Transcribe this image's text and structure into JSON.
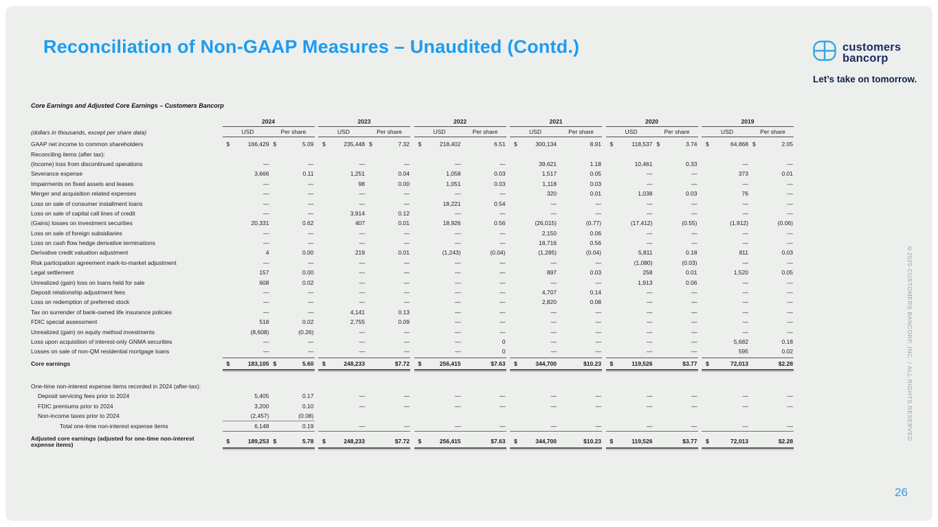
{
  "slide": {
    "title": "Reconciliation of Non-GAAP Measures – Unaudited (Contd.)",
    "page_number": "26",
    "copyright_vertical": "©2025 CUSTOMERS BANCORP, INC. / ALL RIGHTS RESERVED",
    "accent_blue": "#1c9cf2",
    "navy": "#1b2b63",
    "logo_icon_blue": "#2fa9e3",
    "background": "#edefed"
  },
  "logo": {
    "line1": "customers",
    "line2": "bancorp",
    "tagline": "Let’s take on tomorrow."
  },
  "table": {
    "heading": "Core Earnings and Adjusted Core Earnings – Customers Bancorp",
    "units_note": "(dollars in thousands, except per share data)",
    "years": [
      "2024",
      "2023",
      "2022",
      "2021",
      "2020",
      "2019"
    ],
    "subheaders": [
      "USD",
      "Per share"
    ],
    "rows": [
      {
        "label": "GAAP net income to common shareholders",
        "type": "data first-data",
        "cells": [
          "$|166,429",
          "$|5.09",
          "$|235,448",
          "$|7.32",
          "$|218,402",
          "6.51",
          "$|300,134",
          "8.91",
          "$|118,537",
          "$|3.74",
          "$|64,868",
          "$|2.05"
        ]
      },
      {
        "label": "Reconciling items (after tax):",
        "type": "label-only",
        "cells": [
          "",
          "",
          "",
          "",
          "",
          "",
          "",
          "",
          "",
          "",
          "",
          ""
        ]
      },
      {
        "label": "(Income) loss from discontinued operations",
        "type": "data",
        "cells": [
          "—",
          "—",
          "—",
          "—",
          "—",
          "—",
          "39,621",
          "1.18",
          "10,461",
          "0.33",
          "—",
          "—"
        ]
      },
      {
        "label": "Severance expense",
        "type": "data",
        "cells": [
          "3,666",
          "0.11",
          "1,251",
          "0.04",
          "1,058",
          "0.03",
          "1,517",
          "0.05",
          "—",
          "—",
          "373",
          "0.01"
        ]
      },
      {
        "label": "Impairments on fixed assets and leases",
        "type": "data",
        "cells": [
          "—",
          "—",
          "98",
          "0.00",
          "1,051",
          "0.03",
          "1,118",
          "0.03",
          "—",
          "—",
          "—",
          "—"
        ]
      },
      {
        "label": "Merger and acquisition related expenses",
        "type": "data",
        "cells": [
          "—",
          "—",
          "—",
          "—",
          "—",
          "—",
          "320",
          "0.01",
          "1,038",
          "0.03",
          "76",
          "—"
        ]
      },
      {
        "label": "Loss on sale of consumer installment loans",
        "type": "data",
        "cells": [
          "—",
          "—",
          "—",
          "—",
          "18,221",
          "0.54",
          "—",
          "—",
          "—",
          "—",
          "—",
          "—"
        ]
      },
      {
        "label": "Loss on sale of capital call lines of credit",
        "type": "data",
        "cells": [
          "—",
          "—",
          "3,914",
          "0.12",
          "—",
          "—",
          "—",
          "—",
          "—",
          "—",
          "—",
          "—"
        ]
      },
      {
        "label": "(Gains) losses on investment securities",
        "type": "data",
        "cells": [
          "20,331",
          "0.62",
          "407",
          "0.01",
          "18,926",
          "0.56",
          "(26,015)",
          "(0.77)",
          "(17,412)",
          "(0.55)",
          "(1,912)",
          "(0.06)"
        ]
      },
      {
        "label": "Loss on sale of foreign subsidiaries",
        "type": "data",
        "cells": [
          "—",
          "—",
          "—",
          "—",
          "—",
          "—",
          "2,150",
          "0.06",
          "—",
          "—",
          "—",
          "—"
        ]
      },
      {
        "label": "Loss on cash flow hedge derivative terminations",
        "type": "data",
        "cells": [
          "—",
          "—",
          "—",
          "—",
          "—",
          "—",
          "18,716",
          "0.56",
          "—",
          "—",
          "—",
          "—"
        ]
      },
      {
        "label": "Derivative credit valuation adjustment",
        "type": "data",
        "cells": [
          "4",
          "0.00",
          "219",
          "0.01",
          "(1,243)",
          "(0.04)",
          "(1,285)",
          "(0.04)",
          "5,811",
          "0.18",
          "811",
          "0.03"
        ]
      },
      {
        "label": "Risk participation agreement mark-to-market adjustment",
        "type": "data",
        "cells": [
          "—",
          "—",
          "—",
          "—",
          "—",
          "—",
          "—",
          "—",
          "(1,080)",
          "(0.03)",
          "—",
          "—"
        ]
      },
      {
        "label": "Legal settlement",
        "type": "data",
        "cells": [
          "157",
          "0.00",
          "—",
          "—",
          "—",
          "—",
          "897",
          "0.03",
          "258",
          "0.01",
          "1,520",
          "0.05"
        ]
      },
      {
        "label": "Unrealized (gain) loss on loans held for sale",
        "type": "data",
        "cells": [
          "608",
          "0.02",
          "—",
          "—",
          "—",
          "—",
          "—",
          "—",
          "1,913",
          "0.06",
          "—",
          "—"
        ]
      },
      {
        "label": "Deposit relationship adjustment fees",
        "type": "data",
        "cells": [
          "—",
          "—",
          "—",
          "—",
          "—",
          "—",
          "4,707",
          "0.14",
          "—",
          "—",
          "—",
          "—"
        ]
      },
      {
        "label": "Loss on redemption of preferred stock",
        "type": "data",
        "cells": [
          "—",
          "—",
          "—",
          "—",
          "—",
          "—",
          "2,820",
          "0.08",
          "—",
          "—",
          "—",
          "—"
        ]
      },
      {
        "label": "Tax on surrender of bank-owned life insurance policies",
        "type": "data",
        "cells": [
          "—",
          "—",
          "4,141",
          "0.13",
          "—",
          "—",
          "—",
          "—",
          "—",
          "—",
          "—",
          "—"
        ]
      },
      {
        "label": "FDIC special assessment",
        "type": "data",
        "cells": [
          "518",
          "0.02",
          "2,755",
          "0.09",
          "—",
          "—",
          "—",
          "—",
          "—",
          "—",
          "—",
          "—"
        ]
      },
      {
        "label": "Unrealized (gain) on equity method investments",
        "type": "data",
        "cells": [
          "(8,608)",
          "(0.26)",
          "—",
          "—",
          "—",
          "—",
          "—",
          "—",
          "—",
          "—",
          "—",
          "—"
        ]
      },
      {
        "label": "Loss upon acquisition of interest-only GNMA securities",
        "type": "data",
        "cells": [
          "—",
          "—",
          "—",
          "—",
          "—",
          "0",
          "—",
          "—",
          "—",
          "—",
          "5,682",
          "0.18"
        ]
      },
      {
        "label": "Losses on sale of non-QM residential mortgage loans",
        "type": "data",
        "cells": [
          "—",
          "—",
          "—",
          "—",
          "—",
          "0",
          "—",
          "—",
          "—",
          "—",
          "595",
          "0.02"
        ]
      },
      {
        "label": "Core earnings",
        "type": "total",
        "cells": [
          "$|183,105",
          "$|5.60",
          "$|248,233",
          "$7.72",
          "$|256,415",
          "$7.63",
          "$|344,700",
          "$10.23",
          "$|119,526",
          "$3.77",
          "$|72,013",
          "$2.28"
        ]
      },
      {
        "label": "One-time non-interest expense items recorded in 2024 (after-tax):",
        "type": "section",
        "cells": [
          "",
          "",
          "",
          "",
          "",
          "",
          "",
          "",
          "",
          "",
          "",
          ""
        ]
      },
      {
        "label": "Deposit servicing fees prior to 2024",
        "type": "sub",
        "cells": [
          "5,405",
          "0.17",
          "—",
          "—",
          "—",
          "—",
          "—",
          "—",
          "—",
          "—",
          "—",
          "—"
        ]
      },
      {
        "label": "FDIC premiums prior to 2024",
        "type": "sub",
        "cells": [
          "3,200",
          "0.10",
          "—",
          "—",
          "—",
          "—",
          "—",
          "—",
          "—",
          "—",
          "—",
          "—"
        ]
      },
      {
        "label": "Non-income taxes prior to 2024",
        "type": "sub",
        "cells": [
          "(2,457)",
          "(0.08)",
          "",
          "",
          "",
          "",
          "",
          "",
          "",
          "",
          "",
          ""
        ]
      },
      {
        "label": "Total one-time non-interest expense items",
        "type": "subtotal",
        "cells": [
          "6,148",
          "0.19",
          "—",
          "—",
          "—",
          "—",
          "—",
          "—",
          "—",
          "—",
          "—",
          "—"
        ]
      },
      {
        "label": "Adjusted core earnings (adjusted for one-time non-interest expense items)",
        "type": "grand",
        "cells": [
          "$|189,253",
          "$|5.78",
          "$|248,233",
          "$7.72",
          "$|256,415",
          "$7.63",
          "$|344,700",
          "$10.23",
          "$|119,526",
          "$3.77",
          "$|72,013",
          "$2.28"
        ]
      }
    ]
  }
}
